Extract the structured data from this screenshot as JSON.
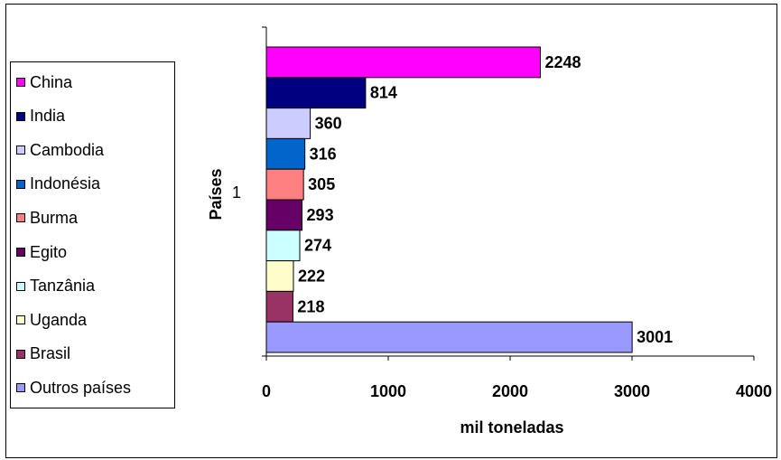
{
  "chart_data": {
    "type": "bar",
    "orientation": "horizontal",
    "categories": [
      "1"
    ],
    "series": [
      {
        "name": "China",
        "value": 2248,
        "color": "#ff00ff"
      },
      {
        "name": "India",
        "value": 814,
        "color": "#000080"
      },
      {
        "name": "Cambodia",
        "value": 360,
        "color": "#ccccff"
      },
      {
        "name": "Indonésia",
        "value": 316,
        "color": "#0066cc"
      },
      {
        "name": "Burma",
        "value": 305,
        "color": "#ff8080"
      },
      {
        "name": "Egito",
        "value": 293,
        "color": "#660066"
      },
      {
        "name": "Tanzânia",
        "value": 274,
        "color": "#ccffff"
      },
      {
        "name": "Uganda",
        "value": 222,
        "color": "#ffffcc"
      },
      {
        "name": "Brasil",
        "value": 218,
        "color": "#993366"
      },
      {
        "name": "Outros países",
        "value": 3001,
        "color": "#9999ff"
      }
    ],
    "xlabel": "mil toneladas",
    "ylabel": "Países",
    "xlim": [
      0,
      4000
    ],
    "xticks": [
      "0",
      "1000",
      "2000",
      "3000",
      "4000"
    ],
    "yticks": [
      "1"
    ],
    "grid": false,
    "legend_position": "left",
    "data_labels": true
  }
}
